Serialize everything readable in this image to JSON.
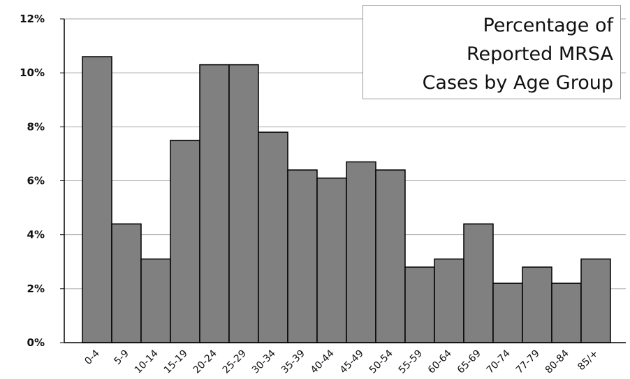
{
  "chart_data": {
    "type": "bar",
    "title_lines": [
      "Percentage of",
      "Reported MRSA",
      "Cases by Age Group"
    ],
    "categories": [
      "0-4",
      "5-9",
      "10-14",
      "15-19",
      "20-24",
      "25-29",
      "30-34",
      "35-39",
      "40-44",
      "45-49",
      "50-54",
      "55-59",
      "60-64",
      "65-69",
      "70-74",
      "77-79",
      "80-84",
      "85/+"
    ],
    "values": [
      10.6,
      4.4,
      3.1,
      7.5,
      10.3,
      10.3,
      7.8,
      6.4,
      6.1,
      6.7,
      6.4,
      2.8,
      3.1,
      4.4,
      2.2,
      2.8,
      2.2,
      3.1
    ],
    "ylim": [
      0,
      12
    ],
    "yticks": [
      0,
      2,
      4,
      6,
      8,
      10,
      12
    ],
    "ytick_labels": [
      "0%",
      "2%",
      "4%",
      "6%",
      "8%",
      "10%",
      "12%"
    ],
    "grid": true,
    "colors": {
      "bar_fill": "#808080",
      "bar_stroke": "#000000",
      "grid": "#a6a6a6",
      "axis": "#000000"
    }
  }
}
